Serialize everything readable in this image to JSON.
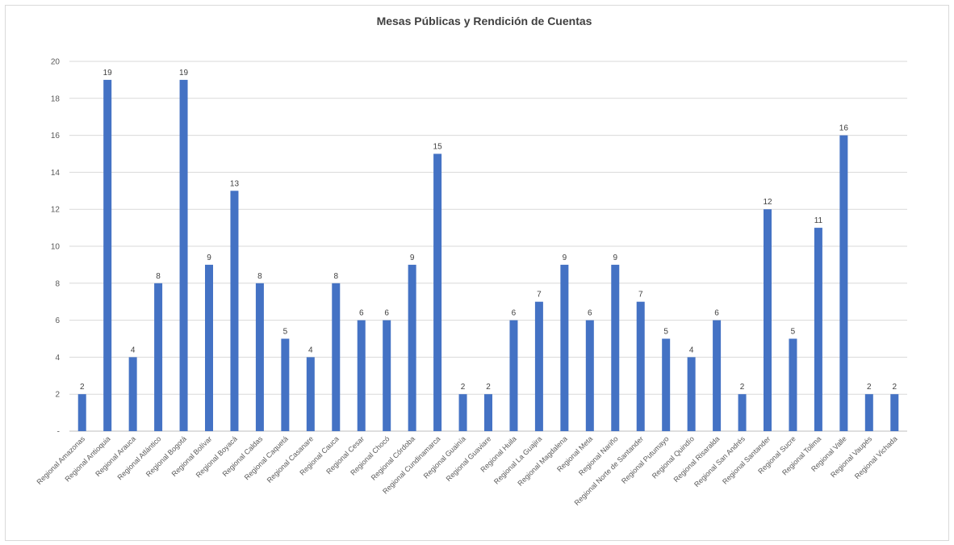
{
  "chart_data": {
    "type": "bar",
    "title": "Mesas Públicas y  Rendición de Cuentas",
    "xlabel": "",
    "ylabel": "",
    "ylim": [
      0,
      20
    ],
    "yticks": [
      {
        "value": 0,
        "label": "-"
      },
      {
        "value": 2,
        "label": "2"
      },
      {
        "value": 4,
        "label": "4"
      },
      {
        "value": 6,
        "label": "6"
      },
      {
        "value": 8,
        "label": "8"
      },
      {
        "value": 10,
        "label": "10"
      },
      {
        "value": 12,
        "label": "12"
      },
      {
        "value": 14,
        "label": "14"
      },
      {
        "value": 16,
        "label": "16"
      },
      {
        "value": 18,
        "label": "18"
      },
      {
        "value": 20,
        "label": "20"
      }
    ],
    "grid": true,
    "legend": "none",
    "bar_color": "#4472c4",
    "categories": [
      "Regional Amazonas",
      "Regional Antioquia",
      "Regional Arauca",
      "Regional Atlántico",
      "Regional Bogotá",
      "Regional Bolívar",
      "Regional Boyacá",
      "Regional Caldas",
      "Regional Caquetá",
      "Regional Casanare",
      "Regional Cauca",
      "Regional Cesar",
      "Regional Chocó",
      "Regional Córdoba",
      "Regional Cundinamarca",
      "Regional Guainía",
      "Regional Guaviare",
      "Regional Huila",
      "Regional La Guajira",
      "Regional Magdalena",
      "Regional Meta",
      "Regional Nariño",
      "Regional Norte de Santander",
      "Regional Putumayo",
      "Regional Quindío",
      "Regional Risaralda",
      "Regional San Andrés",
      "Regional Santander",
      "Regional Sucre",
      "Regional Tolima",
      "Regional Valle",
      "Regional Vaupés",
      "Regional Vichada"
    ],
    "values": [
      2,
      19,
      4,
      8,
      19,
      9,
      13,
      8,
      5,
      4,
      8,
      6,
      6,
      9,
      15,
      2,
      2,
      6,
      7,
      9,
      6,
      9,
      7,
      5,
      4,
      6,
      2,
      12,
      5,
      11,
      16,
      2,
      2
    ]
  }
}
